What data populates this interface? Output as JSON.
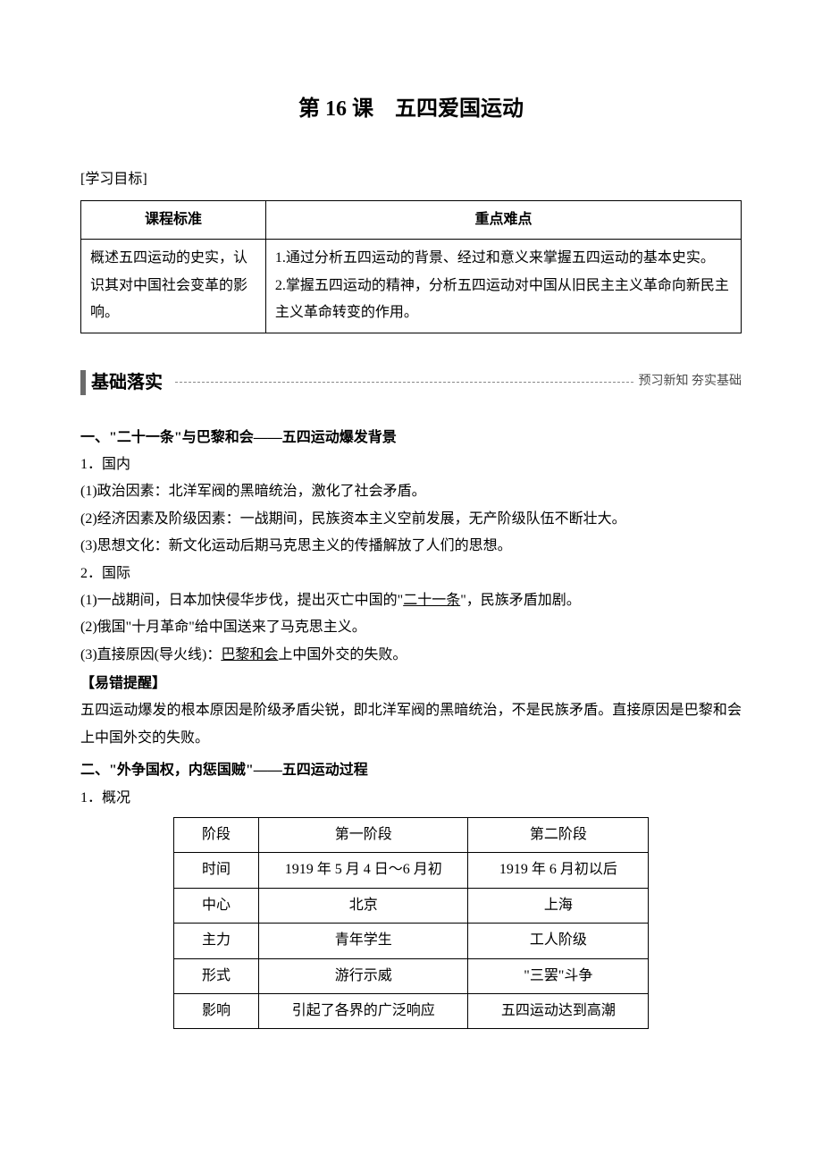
{
  "title": "第 16 课　五四爱国运动",
  "objective_label": "[学习目标]",
  "standards_table": {
    "header_left": "课程标准",
    "header_right": "重点难点",
    "left_cell": "概述五四运动的史实，认识其对中国社会变革的影响。",
    "right_cell": "1.通过分析五四运动的背景、经过和意义来掌握五四运动的基本史实。\n2.掌握五四运动的精神，分析五四运动对中国从旧民主主义革命向新民主主义革命转变的作用。"
  },
  "foundation": {
    "label": "基础落实",
    "right": "预习新知  夯实基础"
  },
  "section1": {
    "heading": "一、\"二十一条\"与巴黎和会——五四运动爆发背景",
    "sub1_label": "1．国内",
    "sub1_items": [
      "(1)政治因素：北洋军阀的黑暗统治，激化了社会矛盾。",
      "(2)经济因素及阶级因素：一战期间，民族资本主义空前发展，无产阶级队伍不断壮大。",
      "(3)思想文化：新文化运动后期马克思主义的传播解放了人们的思想。"
    ],
    "sub2_label": "2．国际",
    "sub2_item1_pre": "(1)一战期间，日本加快侵华步伐，提出灭亡中国的\"",
    "sub2_item1_ul": "二十一条",
    "sub2_item1_post": "\"，民族矛盾加剧。",
    "sub2_item2": "(2)俄国\"十月革命\"给中国送来了马克思主义。",
    "sub2_item3_pre": "(3)直接原因(导火线)：",
    "sub2_item3_ul": "巴黎和会",
    "sub2_item3_post": "上中国外交的失败。"
  },
  "note": {
    "label": "【易错提醒】",
    "text": "五四运动爆发的根本原因是阶级矛盾尖锐，即北洋军阀的黑暗统治，不是民族矛盾。直接原因是巴黎和会上中国外交的失败。"
  },
  "section2": {
    "heading": "二、\"外争国权，内惩国贼\"——五四运动过程",
    "sub1_label": "1．概况"
  },
  "phases_table": {
    "rows": [
      {
        "label": "阶段",
        "a": "第一阶段",
        "b": "第二阶段"
      },
      {
        "label": "时间",
        "a": "1919 年 5 月 4 日～6 月初",
        "b": "1919 年 6 月初以后"
      },
      {
        "label": "中心",
        "a": "北京",
        "b": "上海"
      },
      {
        "label": "主力",
        "a": "青年学生",
        "b": "工人阶级"
      },
      {
        "label": "形式",
        "a": "游行示威",
        "b": "\"三罢\"斗争"
      },
      {
        "label": "影响",
        "a": "引起了各界的广泛响应",
        "b": "五四运动达到高潮"
      }
    ]
  }
}
